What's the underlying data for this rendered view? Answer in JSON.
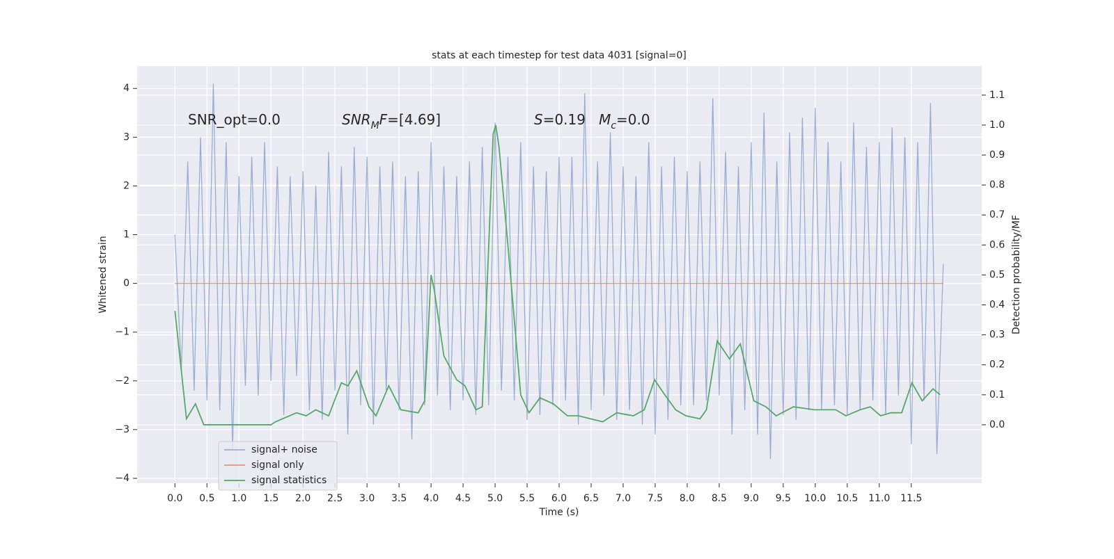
{
  "chart_data": {
    "type": "line",
    "title": "stats at each timestep for test data 4031 [signal=0]",
    "x_label": "Time (s)",
    "y_label": "Whitened strain",
    "y2_label": "Detection probability/MF",
    "xlim": [
      -0.59,
      12.6
    ],
    "ylim": [
      -4.1,
      4.46
    ],
    "y2lim": [
      -0.195,
      1.197
    ],
    "xticks": [
      {
        "value": 0,
        "label": "0.0"
      },
      0.5,
      {
        "value": 1,
        "label": "1.0"
      },
      1.5,
      {
        "value": 2,
        "label": "2.0"
      },
      2.5,
      {
        "value": 3,
        "label": "3.0"
      },
      3.5,
      {
        "value": 4,
        "label": "4.0"
      },
      4.5,
      {
        "value": 5,
        "label": "5.0"
      },
      5.5,
      {
        "value": 6,
        "label": "6.0"
      },
      6.5,
      {
        "value": 7,
        "label": "7.0"
      },
      7.5,
      {
        "value": 8,
        "label": "8.0"
      },
      8.5,
      {
        "value": 9,
        "label": "9.0"
      },
      9.5,
      {
        "value": 10,
        "label": "10.0"
      },
      10.5,
      {
        "value": 11,
        "label": "11.0"
      },
      11.5
    ],
    "yticks": [
      {
        "value": -4,
        "label": "−4"
      },
      {
        "value": -3,
        "label": "−3"
      },
      {
        "value": -2,
        "label": "−2"
      },
      {
        "value": -1,
        "label": "−1"
      },
      0,
      1,
      2,
      3,
      4
    ],
    "y2ticks": [
      {
        "value": 0,
        "label": "0.0"
      },
      0.1,
      0.2,
      0.3,
      0.4,
      0.5,
      0.6,
      0.7,
      0.8,
      0.9,
      {
        "value": 1,
        "label": "1.0"
      },
      1.1
    ],
    "grid": true,
    "legend": "lower left",
    "annotations": [
      {
        "segments": [
          {
            "text": "SNR_opt=0.0"
          }
        ]
      },
      {
        "segments": [
          {
            "text": "SNR",
            "italic": true
          },
          {
            "text": "M",
            "italic": true,
            "sub": true
          },
          {
            "text": "F",
            "italic": true
          },
          {
            "text": "=[4.69]"
          }
        ]
      },
      {
        "segments": [
          {
            "text": "S",
            "italic": true
          },
          {
            "text": "=0.19   "
          },
          {
            "text": "M",
            "italic": true
          },
          {
            "text": "c",
            "italic": true,
            "sub": true
          },
          {
            "text": "=0.0"
          }
        ]
      }
    ],
    "series": [
      {
        "name": "signal+ noise",
        "color": "#4c72b0",
        "opacity": 0.5,
        "x": [
          0,
          0.1,
          0.2,
          0.3,
          0.4,
          0.5,
          0.6,
          0.7,
          0.8,
          0.9,
          1,
          1.1,
          1.2,
          1.3,
          1.4,
          1.5,
          1.6,
          1.7,
          1.8,
          1.9,
          2,
          2.1,
          2.2,
          2.3,
          2.4,
          2.5,
          2.6,
          2.7,
          2.8,
          2.9,
          3,
          3.1,
          3.2,
          3.3,
          3.4,
          3.5,
          3.6,
          3.7,
          3.8,
          3.9,
          4,
          4.1,
          4.2,
          4.3,
          4.4,
          4.5,
          4.6,
          4.7,
          4.8,
          4.9,
          5,
          5.1,
          5.2,
          5.3,
          5.4,
          5.5,
          5.6,
          5.7,
          5.8,
          5.9,
          6,
          6.1,
          6.2,
          6.3,
          6.4,
          6.5,
          6.6,
          6.7,
          6.8,
          6.9,
          7,
          7.1,
          7.2,
          7.3,
          7.4,
          7.5,
          7.6,
          7.7,
          7.8,
          7.9,
          8,
          8.1,
          8.2,
          8.3,
          8.4,
          8.5,
          8.6,
          8.7,
          8.8,
          8.9,
          9,
          9.1,
          9.2,
          9.3,
          9.4,
          9.5,
          9.6,
          9.7,
          9.8,
          9.9,
          10,
          10.1,
          10.2,
          10.3,
          10.4,
          10.5,
          10.6,
          10.7,
          10.8,
          10.9,
          11,
          11.1,
          11.2,
          11.3,
          11.4,
          11.5,
          11.6,
          11.7,
          11.8,
          11.9,
          12
        ],
        "values": [
          1.0,
          -1.8,
          2.5,
          -2.2,
          3.0,
          -2.4,
          4.1,
          -2.6,
          2.9,
          -3.4,
          2.2,
          -2.1,
          2.6,
          -2.3,
          2.9,
          -2.0,
          2.4,
          -2.7,
          2.2,
          -1.9,
          2.3,
          -2.6,
          2.0,
          -2.8,
          2.7,
          -2.2,
          2.4,
          -3.1,
          2.8,
          -2.5,
          2.6,
          -2.9,
          2.4,
          -2.2,
          2.5,
          -2.6,
          2.2,
          -3.2,
          2.3,
          -2.5,
          2.9,
          -2.3,
          2.4,
          -2.6,
          2.2,
          -2.4,
          2.5,
          -2.7,
          2.8,
          -2.5,
          3.3,
          -2.2,
          2.6,
          -2.4,
          2.9,
          -2.8,
          2.4,
          -2.7,
          2.3,
          -2.5,
          2.6,
          -2.4,
          2.6,
          -2.9,
          3.9,
          -2.6,
          2.5,
          -2.3,
          3.1,
          -2.8,
          2.4,
          -2.6,
          2.2,
          -2.9,
          2.9,
          -3.1,
          2.4,
          -2.8,
          2.6,
          -2.5,
          2.3,
          -2.5,
          2.5,
          -2.4,
          3.8,
          -2.3,
          2.7,
          -3.1,
          2.4,
          -2.6,
          2.9,
          -3.1,
          3.5,
          -3.6,
          2.5,
          -2.7,
          3.1,
          -2.8,
          3.4,
          -2.6,
          3.6,
          -2.6,
          2.9,
          -2.5,
          2.5,
          -2.7,
          3.3,
          -2.6,
          2.8,
          -2.4,
          2.9,
          -2.7,
          3.2,
          -2.3,
          3.0,
          -3.3,
          2.9,
          -2.4,
          3.7,
          -3.5,
          0.4
        ]
      },
      {
        "name": "signal only",
        "color": "#dd8452",
        "opacity": 0.8,
        "x": [
          0,
          12
        ],
        "values": [
          0,
          0
        ]
      },
      {
        "name": "signal statistics",
        "color": "#55a868",
        "opacity": 1,
        "axis": "y2",
        "x": [
          0,
          0.18,
          0.32,
          0.45,
          1.5,
          1.57,
          1.9,
          2.05,
          2.2,
          2.4,
          2.6,
          2.7,
          2.84,
          3.03,
          3.14,
          3.34,
          3.53,
          3.8,
          3.9,
          4.0,
          4.05,
          4.2,
          4.4,
          4.53,
          4.7,
          4.8,
          4.97,
          5.01,
          5.06,
          5.2,
          5.4,
          5.53,
          5.7,
          5.91,
          6.13,
          6.3,
          6.68,
          6.9,
          7.16,
          7.33,
          7.49,
          7.65,
          7.82,
          7.98,
          8.2,
          8.3,
          8.47,
          8.66,
          8.83,
          9.04,
          9.23,
          9.39,
          9.66,
          9.99,
          10.32,
          10.48,
          10.7,
          10.86,
          11.02,
          11.18,
          11.35,
          11.51,
          11.67,
          11.84,
          11.95
        ],
        "values": [
          0.38,
          0.02,
          0.07,
          0.0,
          0.0,
          0.01,
          0.04,
          0.03,
          0.05,
          0.03,
          0.14,
          0.13,
          0.18,
          0.06,
          0.03,
          0.13,
          0.05,
          0.04,
          0.08,
          0.5,
          0.45,
          0.23,
          0.15,
          0.13,
          0.05,
          0.06,
          0.97,
          1.0,
          0.93,
          0.6,
          0.1,
          0.04,
          0.09,
          0.07,
          0.03,
          0.03,
          0.01,
          0.04,
          0.03,
          0.05,
          0.15,
          0.1,
          0.05,
          0.03,
          0.02,
          0.05,
          0.28,
          0.22,
          0.27,
          0.08,
          0.06,
          0.03,
          0.06,
          0.05,
          0.05,
          0.03,
          0.05,
          0.06,
          0.03,
          0.04,
          0.04,
          0.14,
          0.08,
          0.12,
          0.1
        ]
      }
    ]
  }
}
